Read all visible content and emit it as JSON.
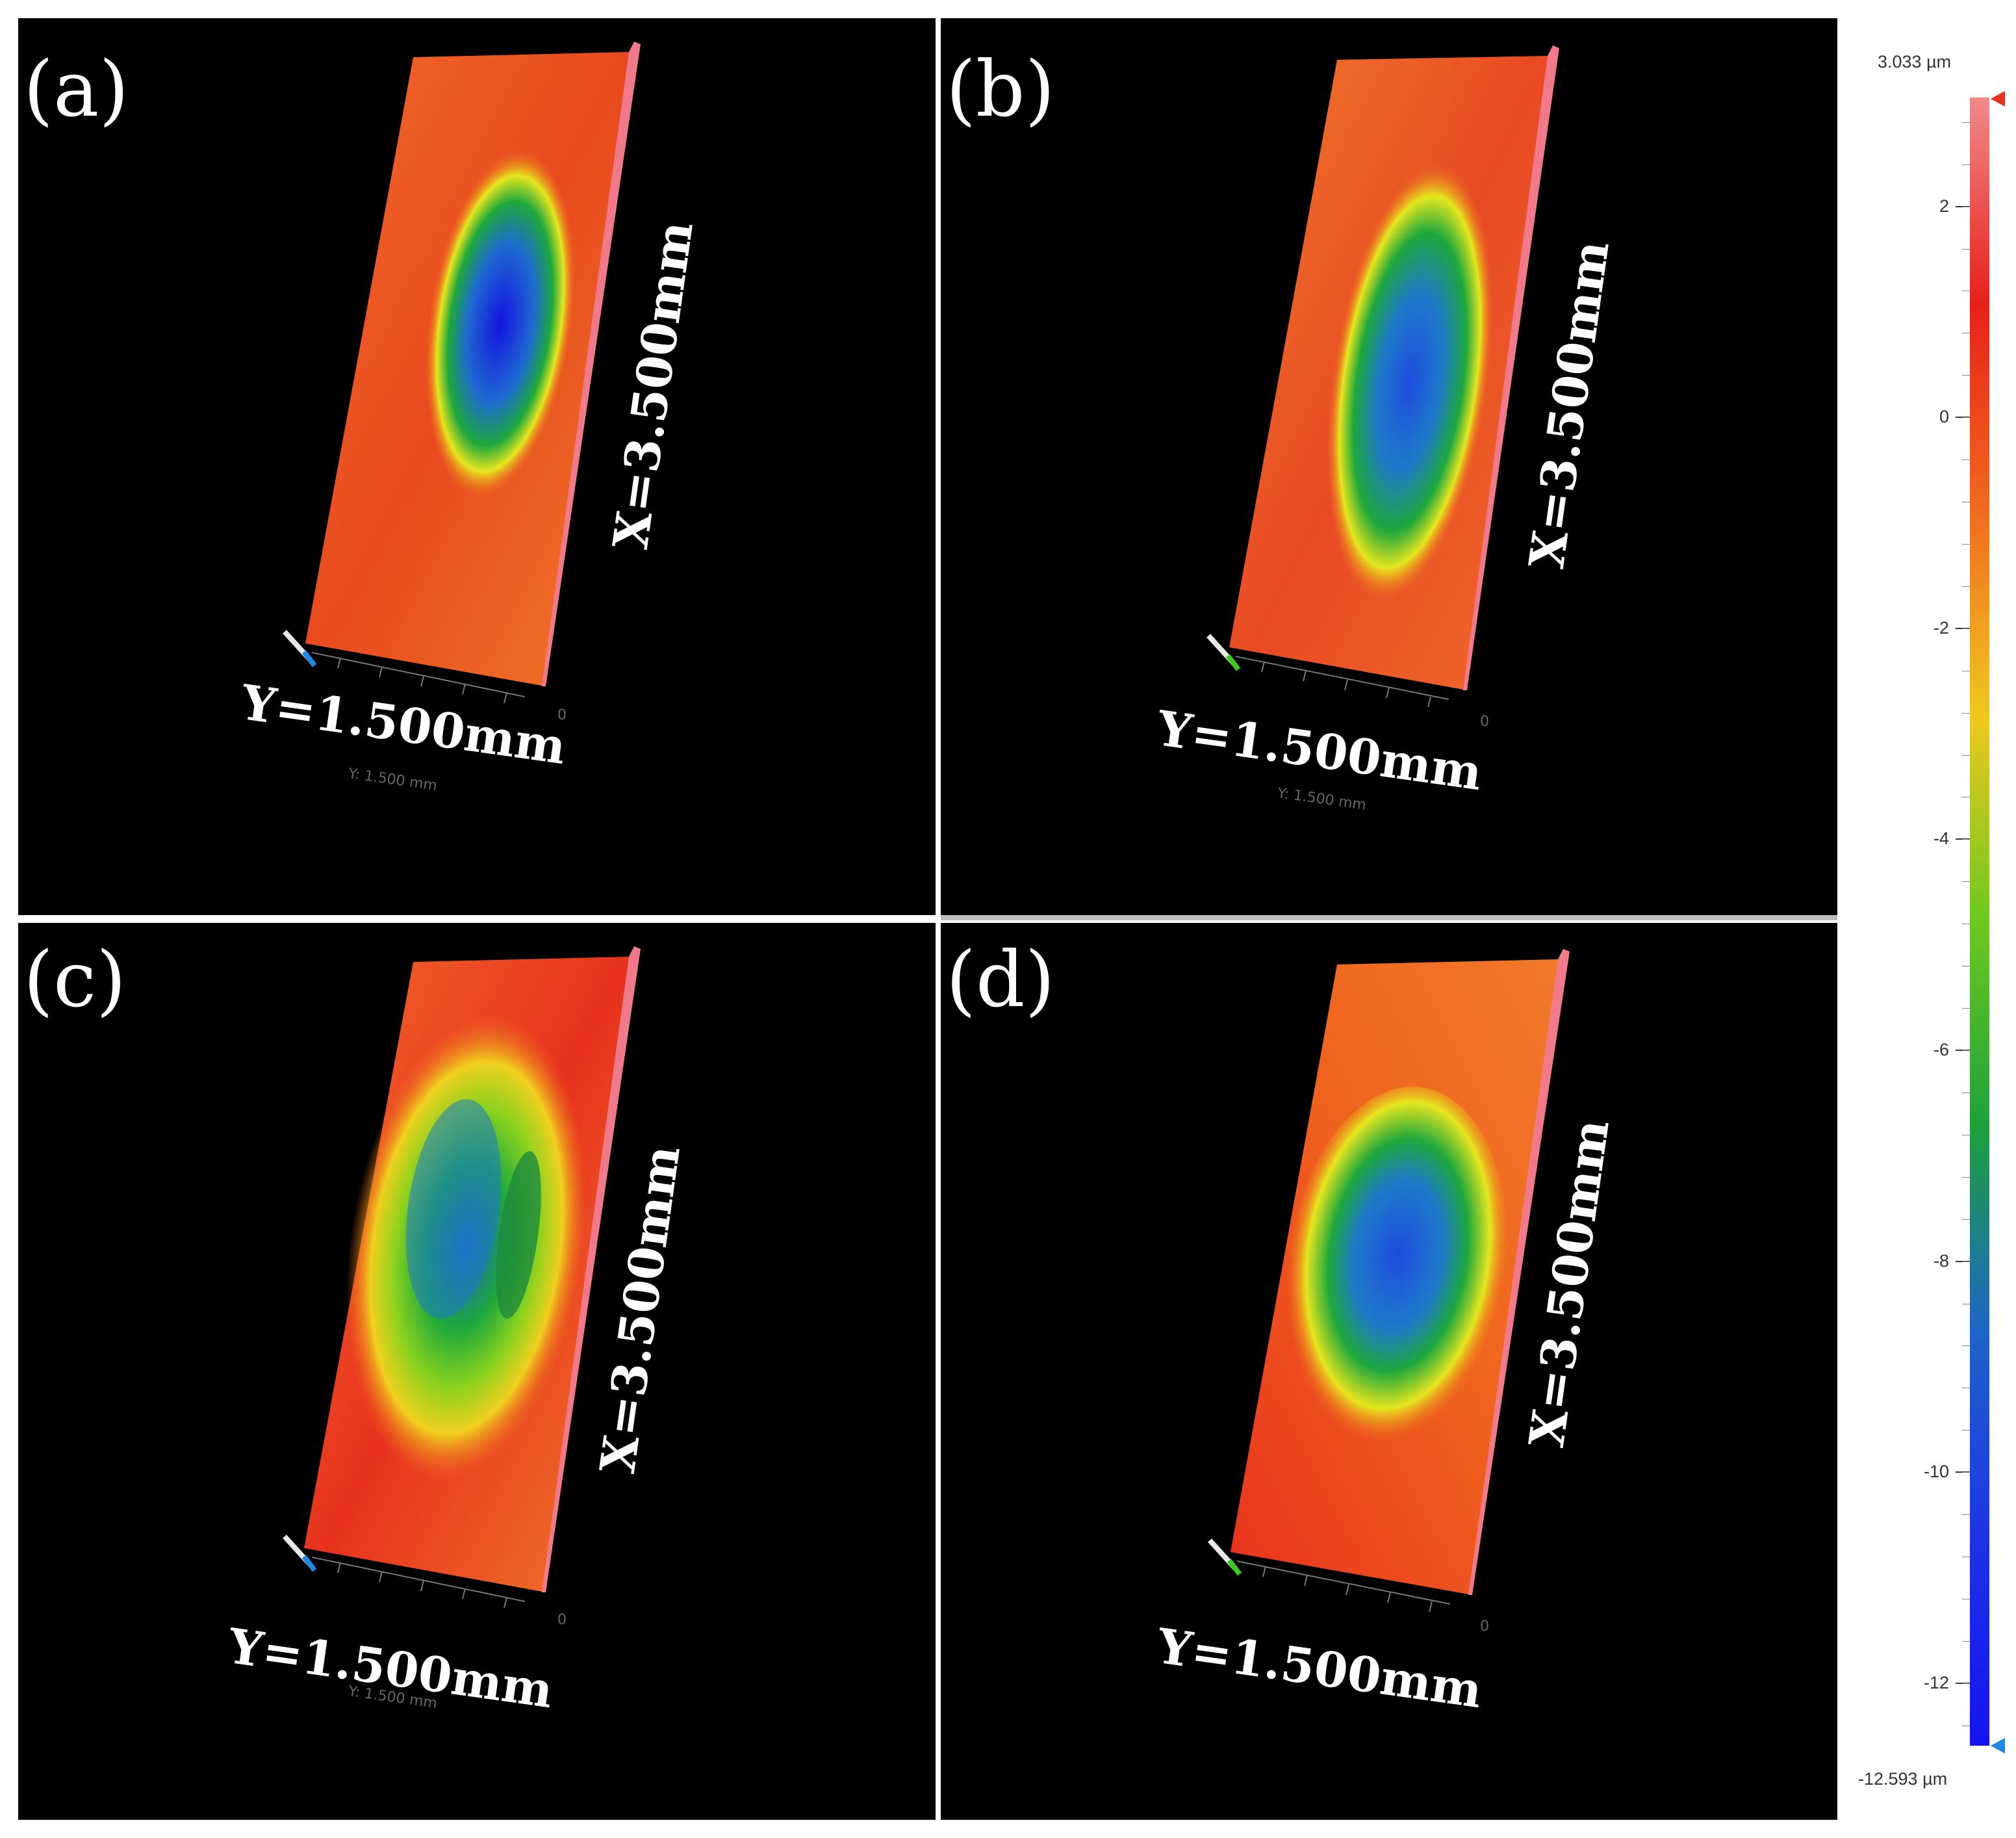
{
  "panels": [
    {
      "label": "(a)",
      "x_label": "X=3.500mm",
      "y_label": "Y=1.500mm",
      "faint_label": "Y: 1.500 mm",
      "tick0": "0"
    },
    {
      "label": "(b)",
      "x_label": "X=3.500mm",
      "y_label": "Y=1.500mm",
      "faint_label": "Y: 1.500 mm",
      "tick0": "0"
    },
    {
      "label": "(c)",
      "x_label": "X=3.500mm",
      "y_label": "Y=1.500mm",
      "faint_label": "Y: 1.500 mm",
      "tick0": "0"
    },
    {
      "label": "(d)",
      "x_label": "X=3.500mm",
      "y_label": "Y=1.500mm",
      "faint_label": "",
      "tick0": "0"
    }
  ],
  "colorbar": {
    "max_label": "3.033 µm",
    "min_label": "-12.593 µm",
    "max_value": 3.033,
    "min_value": -12.593,
    "ticks": [
      "2",
      "0",
      "-2",
      "-4",
      "-6",
      "-8",
      "-10",
      "-12"
    ],
    "tick_values": [
      2,
      0,
      -2,
      -4,
      -6,
      -8,
      -10,
      -12
    ],
    "colors": [
      "#f08a8a",
      "#e8201a",
      "#f06a1e",
      "#f0c81e",
      "#6cc81e",
      "#1ea03c",
      "#1e64c8",
      "#1e32e6",
      "#1414f0"
    ]
  }
}
